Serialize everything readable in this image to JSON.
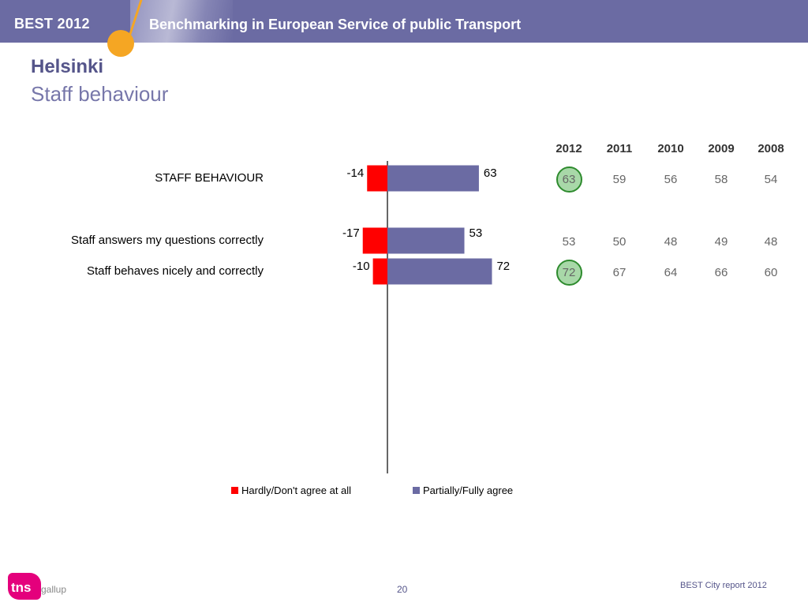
{
  "header": {
    "badge": "BEST 2012",
    "subtitle": "Benchmarking in European Service of public Transport"
  },
  "title": {
    "city": "Helsinki",
    "topic": "Staff behaviour"
  },
  "colors": {
    "negative": "#ff0000",
    "positive": "#6b6ba3",
    "highlight_fill": "#a8d8a8",
    "highlight_border": "#2e8b2e"
  },
  "chart_data": {
    "type": "bar",
    "orientation": "horizontal",
    "categories": [
      "STAFF BEHAVIOUR",
      "Staff answers my questions correctly",
      "Staff behaves nicely and correctly"
    ],
    "series": [
      {
        "name": "Hardly/Don't agree at all",
        "values": [
          -14,
          -17,
          -10
        ]
      },
      {
        "name": "Partially/Fully agree",
        "values": [
          63,
          53,
          72
        ]
      }
    ],
    "legend_placement": "bottom",
    "years": [
      "2012",
      "2011",
      "2010",
      "2009",
      "2008"
    ],
    "year_values": [
      [
        "63",
        "59",
        "56",
        "58",
        "54"
      ],
      [
        "53",
        "50",
        "48",
        "49",
        "48"
      ],
      [
        "72",
        "67",
        "64",
        "66",
        "60"
      ]
    ],
    "highlighted": [
      true,
      false,
      true
    ]
  },
  "footer": {
    "logo": "tns",
    "logo_suffix": "gallup",
    "page_number": "20",
    "report": "BEST City report 2012"
  }
}
